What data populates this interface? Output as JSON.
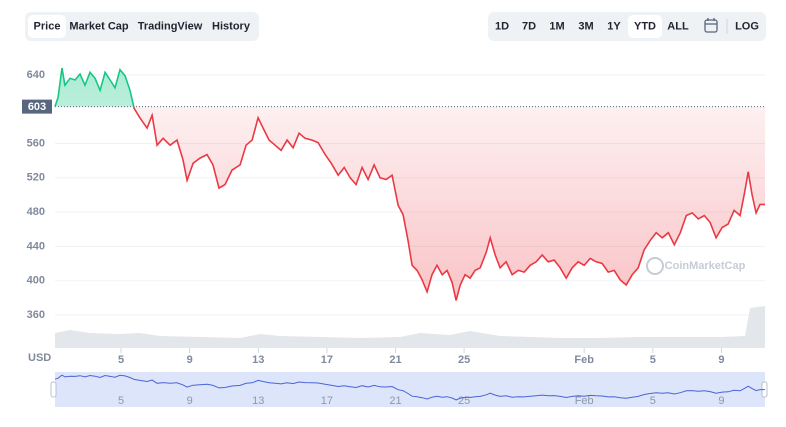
{
  "tabs": [
    "Price",
    "Market Cap",
    "TradingView",
    "History"
  ],
  "active_tab_index": 0,
  "ranges": [
    "1D",
    "7D",
    "1M",
    "3M",
    "1Y",
    "YTD",
    "ALL"
  ],
  "active_range_index": 5,
  "log_button": "LOG",
  "chart_data": {
    "type": "line",
    "ylabel": "USD",
    "watermark": "CoinMarketCap",
    "baseline": 603,
    "up_color": "#16c784",
    "down_color": "#ea3943",
    "navigator_color": "#4a64d6",
    "grid": true,
    "xlim": [
      1.15,
      42.54
    ],
    "ylim": [
      321.5,
      659.7
    ],
    "xticks": [
      5,
      9,
      13,
      17,
      21,
      25,
      {
        "value": 32,
        "label": "Feb"
      },
      {
        "value": 36,
        "label": "5"
      },
      {
        "value": 40,
        "label": "9"
      }
    ],
    "yticks": [
      360,
      400,
      440,
      480,
      520,
      560,
      640
    ],
    "series": [
      {
        "name": "Price",
        "x": [
          1.15,
          1.33,
          1.56,
          1.73,
          2.03,
          2.32,
          2.61,
          2.9,
          3.19,
          3.48,
          3.78,
          4.07,
          4.36,
          4.65,
          4.94,
          5.23,
          5.52,
          5.76,
          6.1,
          6.52,
          6.81,
          7.1,
          7.45,
          7.86,
          8.26,
          8.61,
          8.85,
          9.2,
          9.6,
          10.01,
          10.36,
          10.71,
          11.06,
          11.47,
          11.94,
          12.29,
          12.64,
          12.99,
          13.28,
          13.63,
          13.98,
          14.33,
          14.68,
          15.03,
          15.38,
          15.73,
          16.14,
          16.49,
          16.9,
          17.25,
          17.66,
          18.01,
          18.36,
          18.7,
          19.05,
          19.4,
          19.75,
          20.1,
          20.45,
          20.8,
          21.15,
          21.44,
          21.73,
          21.97,
          22.26,
          22.55,
          22.84,
          23.13,
          23.42,
          23.72,
          24.01,
          24.3,
          24.53,
          24.77,
          25.06,
          25.35,
          25.64,
          25.94,
          26.29,
          26.52,
          26.81,
          27.1,
          27.45,
          27.8,
          28.15,
          28.5,
          28.85,
          29.2,
          29.55,
          29.9,
          30.25,
          30.6,
          30.95,
          31.3,
          31.65,
          32.0,
          32.35,
          32.7,
          33.05,
          33.4,
          33.75,
          34.1,
          34.45,
          34.8,
          35.15,
          35.5,
          35.85,
          36.2,
          36.55,
          36.9,
          37.25,
          37.6,
          37.95,
          38.3,
          38.65,
          39.0,
          39.34,
          39.69,
          40.04,
          40.39,
          40.74,
          41.09,
          41.38,
          41.56,
          41.79,
          42.02,
          42.25,
          42.54
        ],
        "values": [
          603,
          614,
          648,
          628,
          636,
          634,
          641,
          628,
          643,
          636,
          622,
          643,
          634,
          625,
          646,
          639,
          622,
          601,
          590,
          578,
          593,
          558,
          566,
          558,
          564,
          541,
          517,
          537,
          543,
          547,
          535,
          508,
          512,
          529,
          535,
          558,
          564,
          590,
          578,
          564,
          558,
          552,
          564,
          555,
          572,
          566,
          564,
          561,
          547,
          537,
          523,
          532,
          520,
          512,
          532,
          518,
          535,
          520,
          518,
          523,
          488,
          477,
          447,
          418,
          412,
          401,
          387,
          407,
          418,
          407,
          412,
          398,
          377,
          395,
          407,
          403,
          412,
          415,
          433,
          450,
          430,
          415,
          422,
          407,
          412,
          410,
          418,
          422,
          430,
          422,
          424,
          415,
          403,
          415,
          422,
          418,
          426,
          422,
          420,
          410,
          412,
          401,
          395,
          407,
          415,
          436,
          447,
          456,
          450,
          456,
          442,
          456,
          476,
          479,
          472,
          476,
          468,
          450,
          462,
          466,
          482,
          476,
          506,
          527,
          500,
          479,
          489,
          489
        ]
      }
    ]
  }
}
